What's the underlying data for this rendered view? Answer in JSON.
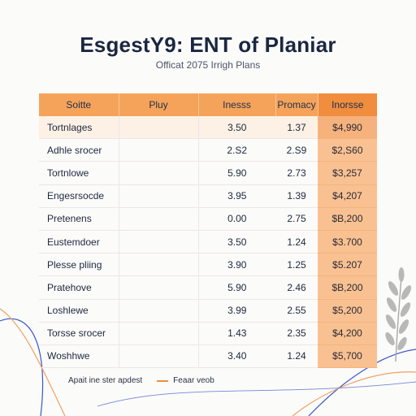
{
  "header": {
    "title": "EsgestY9: ENT of Planiar",
    "subtitle": "Officat 2075 Irrigh Plans"
  },
  "table": {
    "columns": [
      "Soitte",
      "Pluy",
      "Inesss",
      "Promacy",
      "Inorsse"
    ],
    "rows": [
      {
        "name": "Tortnlages",
        "play": "",
        "ines": "3.50",
        "prim": "1.37",
        "inc": "$4,990"
      },
      {
        "name": "Adhle srocer",
        "play": "",
        "ines": "2.S2",
        "prim": "2.S9",
        "inc": "$2,S60"
      },
      {
        "name": "Tortnlowe",
        "play": "",
        "ines": "5.90",
        "prim": "2.73",
        "inc": "$3,257"
      },
      {
        "name": "Engesrsocde",
        "play": "",
        "ines": "3.95",
        "prim": "1.39",
        "inc": "$4,207"
      },
      {
        "name": "Pretenens",
        "play": "",
        "ines": "0.00",
        "prim": "2.75",
        "inc": "$B,200"
      },
      {
        "name": "Eustemdoer",
        "play": "",
        "ines": "3.50",
        "prim": "1.24",
        "inc": "$3.700"
      },
      {
        "name": "Plesse pliing",
        "play": "",
        "ines": "3.90",
        "prim": "1.25",
        "inc": "$5.207"
      },
      {
        "name": "Pratehove",
        "play": "",
        "ines": "5.90",
        "prim": "2.46",
        "inc": "$B,200"
      },
      {
        "name": "Loshlewe",
        "play": "",
        "ines": "3.99",
        "prim": "2.55",
        "inc": "$5,200"
      },
      {
        "name": "Torsse srocer",
        "play": "",
        "ines": "1.43",
        "prim": "2.35",
        "inc": "$4,200"
      },
      {
        "name": "Woshhwe",
        "play": "",
        "ines": "3.40",
        "prim": "1.24",
        "inc": "$5,700"
      }
    ]
  },
  "legend": {
    "text": "Apait ine ster apdest",
    "item_label": "Feaar veob"
  },
  "colors": {
    "accent": "#f08d3e",
    "header_fill": "#f5a35a",
    "income_fill": "#f9c192",
    "curve_blue": "#3d55c7",
    "curve_orange": "#f0a060",
    "leaf": "#b8b8b8"
  }
}
